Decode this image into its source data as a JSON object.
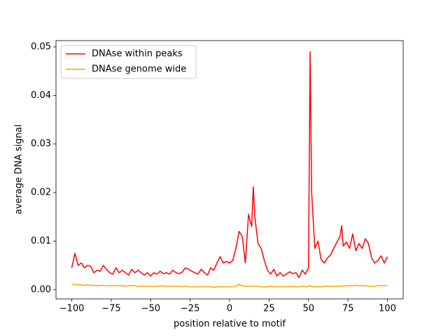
{
  "chart_data": {
    "type": "line",
    "xlabel": "position relative to motif",
    "ylabel": "average DNA signal",
    "x": [
      -100,
      -98,
      -96,
      -94,
      -92,
      -90,
      -88,
      -86,
      -84,
      -82,
      -80,
      -78,
      -76,
      -74,
      -72,
      -70,
      -68,
      -66,
      -64,
      -62,
      -60,
      -58,
      -56,
      -54,
      -52,
      -50,
      -48,
      -46,
      -44,
      -42,
      -40,
      -38,
      -36,
      -34,
      -32,
      -30,
      -28,
      -26,
      -24,
      -22,
      -20,
      -18,
      -16,
      -14,
      -12,
      -10,
      -8,
      -6,
      -4,
      -2,
      0,
      2,
      4,
      6,
      8,
      10,
      12,
      14,
      15,
      16,
      18,
      20,
      22,
      24,
      26,
      28,
      30,
      32,
      34,
      36,
      38,
      40,
      42,
      44,
      46,
      48,
      50,
      51,
      52,
      54,
      56,
      58,
      60,
      62,
      64,
      66,
      68,
      70,
      71,
      72,
      74,
      76,
      78,
      80,
      82,
      84,
      86,
      88,
      90,
      92,
      94,
      96,
      98,
      100
    ],
    "series": [
      {
        "name": "DNAse within peaks",
        "color": "#ff0000",
        "values": [
          0.0045,
          0.0075,
          0.005,
          0.0055,
          0.0045,
          0.005,
          0.0048,
          0.0035,
          0.004,
          0.0038,
          0.005,
          0.0042,
          0.0035,
          0.0032,
          0.0045,
          0.0035,
          0.004,
          0.0035,
          0.003,
          0.0042,
          0.0035,
          0.004,
          0.0035,
          0.003,
          0.0035,
          0.0028,
          0.0035,
          0.0032,
          0.0038,
          0.0033,
          0.0035,
          0.0032,
          0.004,
          0.0035,
          0.0033,
          0.0036,
          0.0045,
          0.0042,
          0.0038,
          0.0035,
          0.0032,
          0.0042,
          0.0035,
          0.003,
          0.0045,
          0.004,
          0.0055,
          0.0068,
          0.0055,
          0.0058,
          0.0055,
          0.006,
          0.0085,
          0.012,
          0.011,
          0.0055,
          0.0155,
          0.013,
          0.0212,
          0.015,
          0.0095,
          0.0085,
          0.006,
          0.004,
          0.0032,
          0.0042,
          0.0028,
          0.0035,
          0.0028,
          0.0032,
          0.0037,
          0.0033,
          0.0035,
          0.0025,
          0.004,
          0.0032,
          0.0045,
          0.049,
          0.02,
          0.0085,
          0.01,
          0.0062,
          0.0055,
          0.0065,
          0.0072,
          0.0085,
          0.0098,
          0.011,
          0.0132,
          0.009,
          0.0098,
          0.0085,
          0.0115,
          0.008,
          0.0095,
          0.0085,
          0.0105,
          0.0095,
          0.0065,
          0.0055,
          0.006,
          0.007,
          0.0055,
          0.0068
        ]
      },
      {
        "name": "DNAse genome wide",
        "color": "#ffa500",
        "values": [
          0.001,
          0.0011,
          0.001,
          0.001,
          0.0009,
          0.001,
          0.0009,
          0.0009,
          0.0008,
          0.0009,
          0.0009,
          0.0008,
          0.0008,
          0.0008,
          0.0008,
          0.0008,
          0.0008,
          0.0007,
          0.0008,
          0.0008,
          0.0008,
          0.0007,
          0.0007,
          0.0007,
          0.0007,
          0.0007,
          0.0007,
          0.0007,
          0.0008,
          0.0007,
          0.0007,
          0.0007,
          0.0007,
          0.0007,
          0.0007,
          0.0006,
          0.0007,
          0.0006,
          0.0006,
          0.0006,
          0.0006,
          0.0006,
          0.0006,
          0.0006,
          0.0006,
          0.0005,
          0.0006,
          0.0006,
          0.0006,
          0.0006,
          0.0006,
          0.0006,
          0.0007,
          0.0011,
          0.0008,
          0.0007,
          0.0007,
          0.0007,
          0.0007,
          0.0007,
          0.0007,
          0.0006,
          0.0006,
          0.0006,
          0.0007,
          0.0006,
          0.0006,
          0.0006,
          0.0006,
          0.0006,
          0.0006,
          0.0007,
          0.0006,
          0.0006,
          0.0007,
          0.0006,
          0.0007,
          0.0009,
          0.0006,
          0.0006,
          0.0006,
          0.0006,
          0.0007,
          0.0007,
          0.0007,
          0.0007,
          0.0007,
          0.0007,
          0.0008,
          0.0007,
          0.0008,
          0.0008,
          0.0008,
          0.0009,
          0.0008,
          0.0008,
          0.0008,
          0.0007,
          0.0007,
          0.0007,
          0.0008,
          0.0008,
          0.0008,
          0.0008
        ]
      }
    ],
    "xlim": [
      -110,
      110
    ],
    "xticks": [
      {
        "value": -100,
        "label": "−100"
      },
      {
        "value": -75,
        "label": "−75"
      },
      {
        "value": -50,
        "label": "−50"
      },
      {
        "value": -25,
        "label": "−25"
      },
      0,
      25,
      50,
      75,
      100
    ],
    "ylim": [
      -0.0019,
      0.0513
    ],
    "yticks": [
      {
        "value": 0,
        "label": "0.00"
      },
      {
        "value": 0.01,
        "label": "0.01"
      },
      {
        "value": 0.02,
        "label": "0.02"
      },
      {
        "value": 0.03,
        "label": "0.03"
      },
      {
        "value": 0.04,
        "label": "0.04"
      },
      {
        "value": 0.05,
        "label": "0.05"
      }
    ],
    "legend": "upper left"
  }
}
